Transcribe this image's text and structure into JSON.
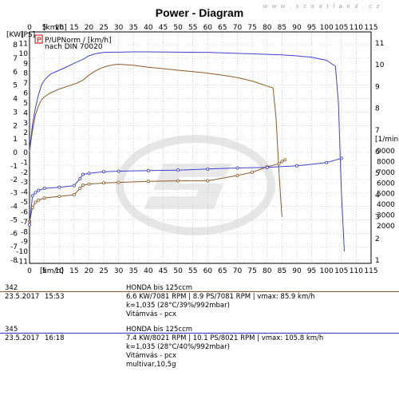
{
  "watermark": "www.scootland.cz",
  "chart_data": {
    "type": "line",
    "title": "Power - Diagram",
    "x_unit_top": "[km/h]",
    "x_unit_bottom": "[km/h]",
    "x_ticks": [
      0,
      5,
      10,
      15,
      20,
      25,
      30,
      35,
      40,
      45,
      50,
      55,
      60,
      65,
      70,
      75,
      80,
      85,
      90,
      95,
      100,
      105,
      110,
      115
    ],
    "xlim": [
      0,
      115
    ],
    "left_axis_units": [
      "[KW]",
      "[PS]"
    ],
    "kw_ticks": [
      8,
      7,
      6,
      5,
      4,
      3,
      2,
      1,
      0,
      -1,
      -2,
      -3,
      -4,
      -5,
      -6,
      -7,
      -8
    ],
    "ps_ticks": [
      11,
      10,
      9,
      8,
      7,
      6,
      5,
      4,
      3,
      2,
      1,
      0,
      -1,
      -2,
      -3,
      -4,
      -5,
      -6,
      -7,
      -8,
      -9,
      -10,
      -11
    ],
    "kw_range": [
      -8,
      8
    ],
    "right_ps_ticks": [
      11,
      10,
      9,
      8,
      7,
      6,
      5,
      4,
      3,
      2,
      1
    ],
    "right_ps_range": [
      1,
      11
    ],
    "rpm_unit": "[1/min]",
    "rpm_ticks": [
      9000,
      8000,
      7000,
      6000,
      5000,
      4000,
      3000,
      2000
    ],
    "rpm_range": [
      2000,
      9000
    ],
    "legend": {
      "box_label": "P",
      "line1": "P/UPNorm / [km/h]",
      "line2": "nach DIN 70020"
    },
    "series": [
      {
        "name": "342",
        "color": "#8b5a2b",
        "power_ps_x": [
          0,
          1,
          2,
          3,
          4,
          5,
          7,
          10,
          13,
          16,
          18,
          20,
          22,
          24,
          26,
          28,
          30,
          35,
          40,
          45,
          50,
          55,
          60,
          65,
          70,
          75,
          78,
          80,
          82,
          83,
          84,
          85
        ],
        "power_ps_y": [
          0.2,
          2.2,
          3.8,
          4.7,
          5.3,
          5.6,
          6.0,
          6.4,
          6.7,
          7.0,
          7.3,
          7.8,
          8.2,
          8.5,
          8.7,
          8.85,
          8.9,
          8.8,
          8.6,
          8.45,
          8.3,
          8.15,
          8.0,
          7.8,
          7.55,
          7.2,
          6.9,
          6.7,
          6.5,
          3.5,
          -2.0,
          -6.5
        ],
        "rpm_x": [
          0,
          1,
          2,
          3,
          5,
          10,
          15,
          17,
          18,
          20,
          25,
          30,
          40,
          50,
          60,
          70,
          75,
          80,
          84,
          85,
          86
        ],
        "rpm_y": [
          2400,
          3700,
          4200,
          4400,
          4600,
          4750,
          4900,
          5500,
          5800,
          5900,
          6000,
          6050,
          6150,
          6200,
          6200,
          6700,
          7000,
          7500,
          7800,
          8000,
          8150
        ]
      },
      {
        "name": "345",
        "color": "#4040cc",
        "power_ps_x": [
          0,
          1,
          2,
          3,
          4,
          5,
          7,
          10,
          13,
          15,
          18,
          20,
          22,
          25,
          28,
          30,
          35,
          40,
          50,
          60,
          70,
          80,
          85,
          90,
          95,
          100,
          103,
          104,
          105,
          106
        ],
        "power_ps_y": [
          0.1,
          2.8,
          4.5,
          5.8,
          6.8,
          7.3,
          7.9,
          8.3,
          8.7,
          9.0,
          9.4,
          9.75,
          9.95,
          10.1,
          10.12,
          10.12,
          10.15,
          10.15,
          10.12,
          10.1,
          10.0,
          9.9,
          9.85,
          9.75,
          9.6,
          9.3,
          8.7,
          5.0,
          -4.0,
          -10.0
        ],
        "rpm_x": [
          0,
          1,
          2,
          3,
          5,
          10,
          15,
          17,
          18,
          20,
          25,
          30,
          40,
          50,
          60,
          70,
          80,
          90,
          100,
          105
        ],
        "rpm_y": [
          2100,
          4800,
          5100,
          5300,
          5500,
          5600,
          5750,
          6400,
          6800,
          6900,
          7050,
          7100,
          7150,
          7200,
          7300,
          7400,
          7450,
          7600,
          7900,
          8300
        ]
      }
    ]
  },
  "runs": [
    {
      "id": "342",
      "date": "23.5.2017",
      "time": "15:53",
      "color": "#8b5a2b",
      "model": "HONDA bis      125ccm",
      "result": "6.6 KW/7081 RPM  |  8.9 PS/7081 RPM  |  vmax: 85.9 km/h",
      "conditions": "k=1,035 (28°C/39%/992mbar)",
      "note1": "Vitámvás - pcx",
      "note2": ""
    },
    {
      "id": "345",
      "date": "23.5.2017",
      "time": "16:18",
      "color": "#3333bb",
      "model": "HONDA bis      125ccm",
      "result": "7.4 KW/8021 RPM  |  10.1 PS/8021 RPM  |  vmax: 105.8 km/h",
      "conditions": "k=1,035 (28°C/40%/992mbar)",
      "note1": "Vitámvás - pcx",
      "note2": "multivar,10,5g"
    }
  ]
}
